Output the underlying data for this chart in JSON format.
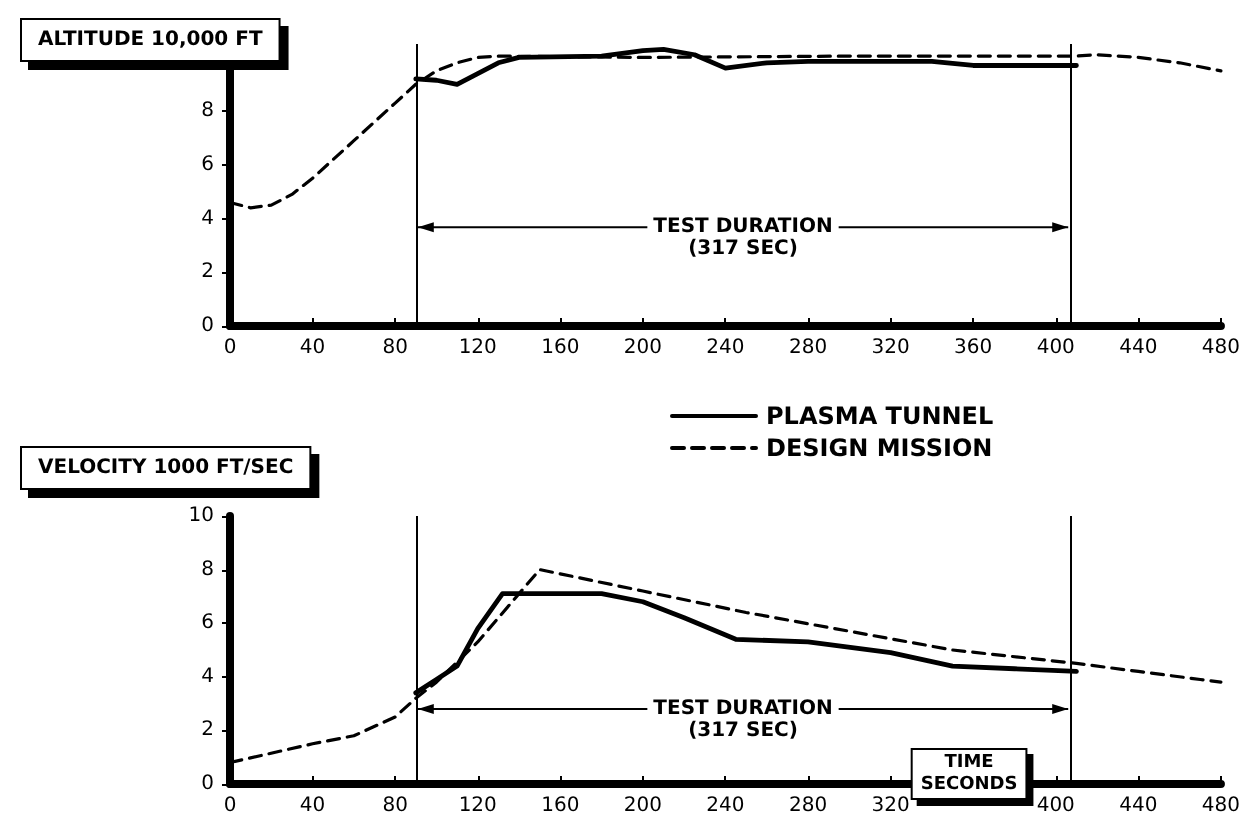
{
  "chart_data": [
    {
      "type": "line",
      "ylabel": "ALTITUDE 10,000 FT",
      "xlim": [
        0,
        480
      ],
      "xticks": [
        0,
        40,
        80,
        120,
        160,
        200,
        240,
        280,
        320,
        360,
        400,
        440,
        480
      ],
      "ylim": [
        0,
        10.5
      ],
      "yticks": [
        0,
        2,
        4,
        6,
        8
      ],
      "marker": "none",
      "series": [
        {
          "color": "#000000",
          "line_style": "solid",
          "x": [
            90,
            100,
            110,
            120,
            130,
            140,
            180,
            200,
            210,
            225,
            240,
            260,
            280,
            340,
            360,
            410
          ],
          "values": [
            9.2,
            9.15,
            9.0,
            9.4,
            9.8,
            10.0,
            10.05,
            10.25,
            10.3,
            10.1,
            9.6,
            9.8,
            9.85,
            9.85,
            9.7,
            9.7
          ]
        },
        {
          "color": "#000000",
          "line_style": "dashed",
          "x": [
            0,
            10,
            20,
            30,
            40,
            50,
            60,
            70,
            80,
            90,
            100,
            110,
            120,
            130,
            200,
            300,
            410,
            420,
            440,
            460,
            480
          ],
          "values": [
            4.6,
            4.4,
            4.5,
            4.9,
            5.5,
            6.2,
            6.9,
            7.6,
            8.3,
            9.0,
            9.5,
            9.8,
            10.0,
            10.05,
            10.0,
            10.05,
            10.05,
            10.1,
            10.0,
            9.8,
            9.5
          ]
        }
      ],
      "ref_lines": [
        {
          "axis": "x",
          "value": 90,
          "color": "#000000"
        },
        {
          "axis": "x",
          "value": 407,
          "color": "#000000"
        }
      ],
      "annotations": [
        "TEST DURATION",
        "(317 SEC)"
      ]
    },
    {
      "type": "line",
      "ylabel": "VELOCITY 1000 FT/SEC",
      "xlabel": "TIME\nSECONDS",
      "xlim": [
        0,
        480
      ],
      "xticks": [
        0,
        40,
        80,
        120,
        160,
        200,
        240,
        280,
        320,
        400,
        440,
        480
      ],
      "ylim": [
        0,
        10
      ],
      "yticks": [
        0,
        2,
        4,
        6,
        8,
        10
      ],
      "marker": "none",
      "legend": "top",
      "series": [
        {
          "name": "PLASMA TUNNEL",
          "color": "#000000",
          "line_style": "solid",
          "x": [
            90,
            100,
            110,
            120,
            132,
            160,
            180,
            200,
            220,
            245,
            280,
            320,
            350,
            380,
            410
          ],
          "values": [
            3.4,
            3.9,
            4.4,
            5.8,
            7.1,
            7.1,
            7.1,
            6.8,
            6.2,
            5.4,
            5.3,
            4.9,
            4.4,
            4.3,
            4.2
          ]
        },
        {
          "name": "DESIGN MISSION",
          "color": "#000000",
          "line_style": "dashed",
          "x": [
            0,
            40,
            60,
            80,
            90,
            100,
            120,
            150,
            200,
            250,
            300,
            350,
            410,
            440,
            470,
            480
          ],
          "values": [
            0.8,
            1.5,
            1.8,
            2.5,
            3.2,
            3.8,
            5.3,
            8.0,
            7.2,
            6.4,
            5.7,
            5.0,
            4.5,
            4.2,
            3.9,
            3.8
          ]
        }
      ],
      "ref_lines": [
        {
          "axis": "x",
          "value": 90,
          "color": "#000000"
        },
        {
          "axis": "x",
          "value": 407,
          "color": "#000000"
        }
      ],
      "annotations": [
        "TEST DURATION",
        "(317 SEC)"
      ]
    }
  ]
}
